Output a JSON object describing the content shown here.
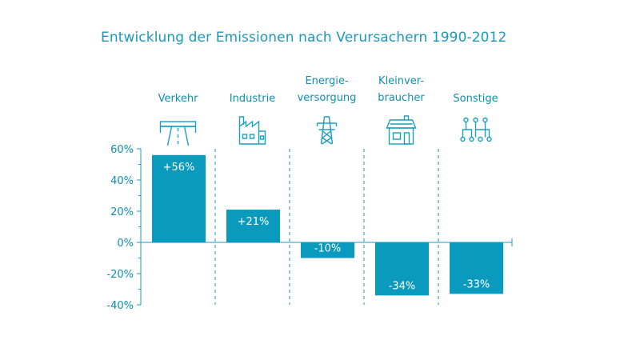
{
  "colors": {
    "bar": "#0a9abd",
    "text": "#1a9ab8",
    "axis": "#1a9ab8"
  },
  "chart_data": {
    "type": "bar",
    "title": "Entwicklung der Emissionen nach Verursachern 1990-2012",
    "categories": [
      {
        "lines": [
          "Verkehr"
        ],
        "icon": "highway-icon"
      },
      {
        "lines": [
          "Industrie"
        ],
        "icon": "factory-icon"
      },
      {
        "lines": [
          "Energie-",
          "versorgung"
        ],
        "icon": "power-pylon-icon"
      },
      {
        "lines": [
          "Kleinver-",
          "braucher"
        ],
        "icon": "house-icon"
      },
      {
        "lines": [
          "Sonstige"
        ],
        "icon": "network-nodes-icon"
      }
    ],
    "values": [
      56,
      21,
      -10,
      -34,
      -33
    ],
    "value_labels": [
      "+56%",
      "+21%",
      "-10%",
      "-34%",
      "-33%"
    ],
    "ylim": [
      -40,
      60
    ],
    "yticks": [
      60,
      40,
      20,
      0,
      -20,
      -40
    ],
    "ytick_labels": [
      "60%",
      "40%",
      "20%",
      "0%",
      "-20%",
      "-40%"
    ],
    "grid": false
  }
}
